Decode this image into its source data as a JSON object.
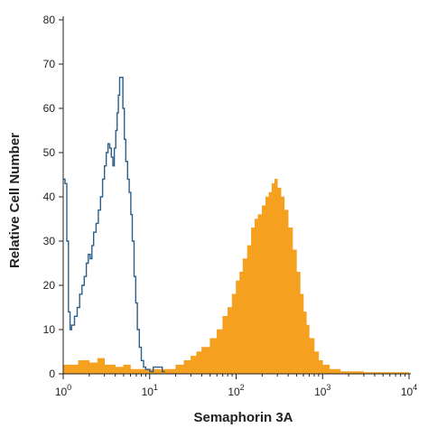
{
  "chart_data": {
    "type": "histogram",
    "xlabel": "Semaphorin 3A",
    "ylabel": "Relative Cell Number",
    "x_scale": "log",
    "xlim": [
      1,
      10000
    ],
    "ylim": [
      0,
      80
    ],
    "x_ticks": [
      {
        "value": 1,
        "base": "10",
        "exp": "0"
      },
      {
        "value": 10,
        "base": "10",
        "exp": "1"
      },
      {
        "value": 100,
        "base": "10",
        "exp": "2"
      },
      {
        "value": 1000,
        "base": "10",
        "exp": "3"
      },
      {
        "value": 10000,
        "base": "10",
        "exp": "4"
      }
    ],
    "y_ticks": [
      0,
      10,
      20,
      30,
      40,
      50,
      60,
      70,
      80
    ],
    "grid": false,
    "series": [
      {
        "style": "outline",
        "color": "#2b5f8a",
        "points": [
          [
            1.0,
            44
          ],
          [
            1.05,
            43
          ],
          [
            1.1,
            30
          ],
          [
            1.15,
            14
          ],
          [
            1.2,
            10
          ],
          [
            1.25,
            11
          ],
          [
            1.35,
            13
          ],
          [
            1.45,
            15
          ],
          [
            1.55,
            18
          ],
          [
            1.65,
            20
          ],
          [
            1.75,
            22
          ],
          [
            1.85,
            25
          ],
          [
            1.95,
            27
          ],
          [
            2.05,
            26
          ],
          [
            2.15,
            29
          ],
          [
            2.25,
            32
          ],
          [
            2.4,
            34
          ],
          [
            2.55,
            37
          ],
          [
            2.7,
            40
          ],
          [
            2.85,
            44
          ],
          [
            3.0,
            47
          ],
          [
            3.15,
            50
          ],
          [
            3.3,
            52
          ],
          [
            3.45,
            51
          ],
          [
            3.6,
            49
          ],
          [
            3.75,
            47
          ],
          [
            3.9,
            51
          ],
          [
            4.05,
            55
          ],
          [
            4.2,
            59
          ],
          [
            4.35,
            63
          ],
          [
            4.5,
            67
          ],
          [
            4.7,
            67
          ],
          [
            4.9,
            60
          ],
          [
            5.1,
            53
          ],
          [
            5.3,
            48
          ],
          [
            5.55,
            44
          ],
          [
            5.8,
            41
          ],
          [
            6.05,
            36
          ],
          [
            6.3,
            30
          ],
          [
            6.6,
            22
          ],
          [
            6.9,
            16
          ],
          [
            7.2,
            10
          ],
          [
            7.6,
            6
          ],
          [
            8.0,
            3
          ],
          [
            8.5,
            1.5
          ],
          [
            9.0,
            1
          ],
          [
            10.0,
            0.5
          ],
          [
            11.0,
            1.5
          ],
          [
            12.0,
            1.5
          ],
          [
            13.0,
            1.5
          ],
          [
            14.0,
            0.5
          ],
          [
            15.0,
            0.5
          ]
        ]
      },
      {
        "style": "filled",
        "color": "#f5a01e",
        "points": [
          [
            1.0,
            2
          ],
          [
            1.5,
            3
          ],
          [
            2.0,
            2.5
          ],
          [
            2.5,
            3.5
          ],
          [
            3.0,
            2
          ],
          [
            4.0,
            1.5
          ],
          [
            5.0,
            2
          ],
          [
            6.0,
            1
          ],
          [
            7.0,
            1
          ],
          [
            9.0,
            1
          ],
          [
            12.0,
            1
          ],
          [
            15.0,
            1
          ],
          [
            20.0,
            2
          ],
          [
            25.0,
            3
          ],
          [
            30.0,
            4
          ],
          [
            35.0,
            5
          ],
          [
            40.0,
            6
          ],
          [
            50.0,
            8
          ],
          [
            60.0,
            10
          ],
          [
            70.0,
            13
          ],
          [
            80.0,
            15
          ],
          [
            90.0,
            18
          ],
          [
            100.0,
            21
          ],
          [
            110.0,
            23
          ],
          [
            120.0,
            26
          ],
          [
            135.0,
            29
          ],
          [
            150.0,
            33
          ],
          [
            165.0,
            35
          ],
          [
            180.0,
            36
          ],
          [
            200.0,
            38
          ],
          [
            220.0,
            40
          ],
          [
            240.0,
            41
          ],
          [
            260.0,
            43
          ],
          [
            280.0,
            44
          ],
          [
            300.0,
            42
          ],
          [
            330.0,
            40
          ],
          [
            360.0,
            37
          ],
          [
            400.0,
            33
          ],
          [
            450.0,
            28
          ],
          [
            500.0,
            23
          ],
          [
            550.0,
            18
          ],
          [
            600.0,
            14
          ],
          [
            650.0,
            11
          ],
          [
            700.0,
            8
          ],
          [
            800.0,
            5
          ],
          [
            900.0,
            3
          ],
          [
            1000.0,
            2
          ],
          [
            1200.0,
            1
          ],
          [
            1600.0,
            0.5
          ],
          [
            3000.0,
            0.3
          ],
          [
            10000.0,
            0.3
          ]
        ]
      }
    ]
  }
}
